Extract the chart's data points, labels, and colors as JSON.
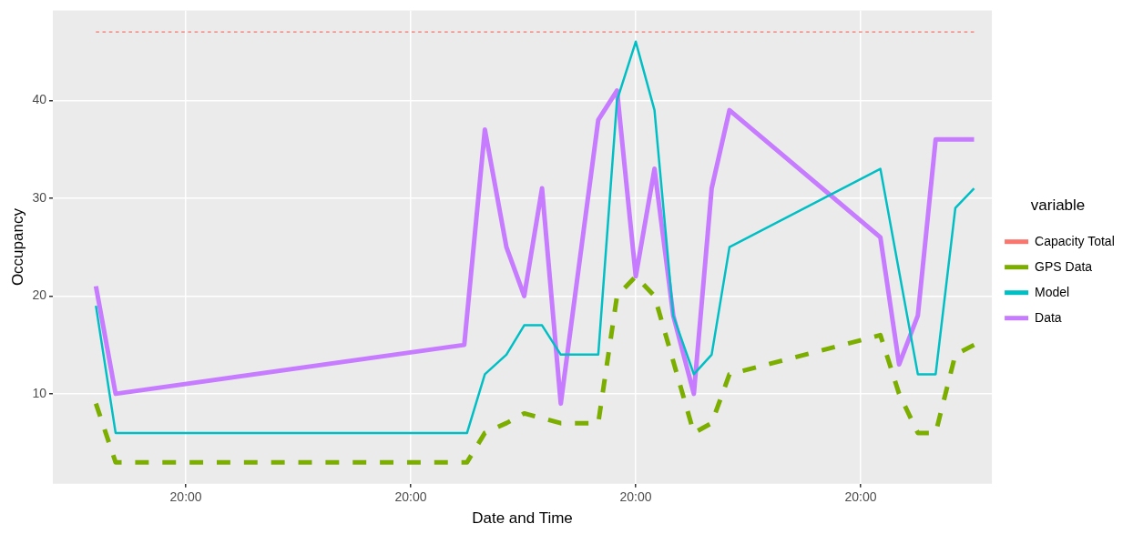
{
  "chart_data": {
    "type": "line",
    "xlabel": "Date and Time",
    "ylabel": "Occupancy",
    "legend_title": "variable",
    "legend": "right",
    "grid": true,
    "xlim": [
      "--01-01T05:48",
      "--01-05T10:00"
    ],
    "xticks": [
      {
        "value": "--01-01T20:00",
        "label": "20:00"
      },
      {
        "value": "--01-02T20:00",
        "label": "20:00"
      },
      {
        "value": "--01-03T20:00",
        "label": "20:00"
      },
      {
        "value": "--01-04T20:00",
        "label": "20:00"
      }
    ],
    "ylim": [
      0.8,
      49.2
    ],
    "yticks": [
      10,
      20,
      30,
      40
    ],
    "series": [
      {
        "name": "Capacity Total",
        "color": "#f8766d",
        "line_style": "dashed",
        "x": [
          "--01-01T10:24",
          "--01-05T08:06"
        ],
        "values": [
          47,
          47
        ]
      },
      {
        "name": "GPS Data",
        "color": "#7cae00",
        "line_style": "dashed",
        "x": [
          "--01-01T10:24",
          "--01-01T12:30",
          "--01-03T02:00",
          "--01-03T03:54",
          "--01-03T06:12",
          "--01-03T08:06",
          "--01-03T12:00",
          "--01-03T16:00",
          "--01-03T18:00",
          "--01-03T20:00",
          "--01-03T22:00",
          "--01-04T02:12",
          "--01-04T04:06",
          "--01-04T06:00",
          "--01-04T22:06",
          "--01-05T00:06",
          "--01-05T02:06",
          "--01-05T04:00",
          "--01-05T06:06",
          "--01-05T08:06"
        ],
        "values": [
          9,
          3,
          3,
          6,
          7,
          8,
          7,
          7,
          20,
          22,
          20,
          6,
          7,
          12,
          16,
          10,
          6,
          6,
          14,
          15
        ]
      },
      {
        "name": "Model",
        "color": "#00bfc4",
        "line_style": "solid",
        "x": [
          "--01-01T10:24",
          "--01-01T12:30",
          "--01-03T02:00",
          "--01-03T03:54",
          "--01-03T06:12",
          "--01-03T08:06",
          "--01-03T10:00",
          "--01-03T12:00",
          "--01-03T16:00",
          "--01-03T18:00",
          "--01-03T20:00",
          "--01-03T22:00",
          "--01-04T00:00",
          "--01-04T02:12",
          "--01-04T04:06",
          "--01-04T06:00",
          "--01-04T22:06",
          "--01-05T02:06",
          "--01-05T04:00",
          "--01-05T06:06",
          "--01-05T08:06"
        ],
        "values": [
          19,
          6,
          6,
          12,
          14,
          17,
          17,
          14,
          14,
          40,
          46,
          39,
          18,
          12,
          14,
          25,
          33,
          12,
          12,
          29,
          31
        ]
      },
      {
        "name": "Data",
        "color": "#c77cff",
        "line_style": "solid",
        "x": [
          "--01-01T10:24",
          "--01-01T12:30",
          "--01-03T01:42",
          "--01-03T03:54",
          "--01-03T06:12",
          "--01-03T08:06",
          "--01-03T10:00",
          "--01-03T12:00",
          "--01-03T16:00",
          "--01-03T18:00",
          "--01-03T20:00",
          "--01-03T22:00",
          "--01-04T00:00",
          "--01-04T02:12",
          "--01-04T04:06",
          "--01-04T06:00",
          "--01-04T22:06",
          "--01-05T00:06",
          "--01-05T02:06",
          "--01-05T04:00",
          "--01-05T08:06"
        ],
        "values": [
          21,
          10,
          15,
          37,
          25,
          20,
          31,
          9,
          38,
          41,
          22,
          33,
          18,
          10,
          31,
          39,
          26,
          13,
          18,
          36,
          36
        ]
      }
    ]
  }
}
